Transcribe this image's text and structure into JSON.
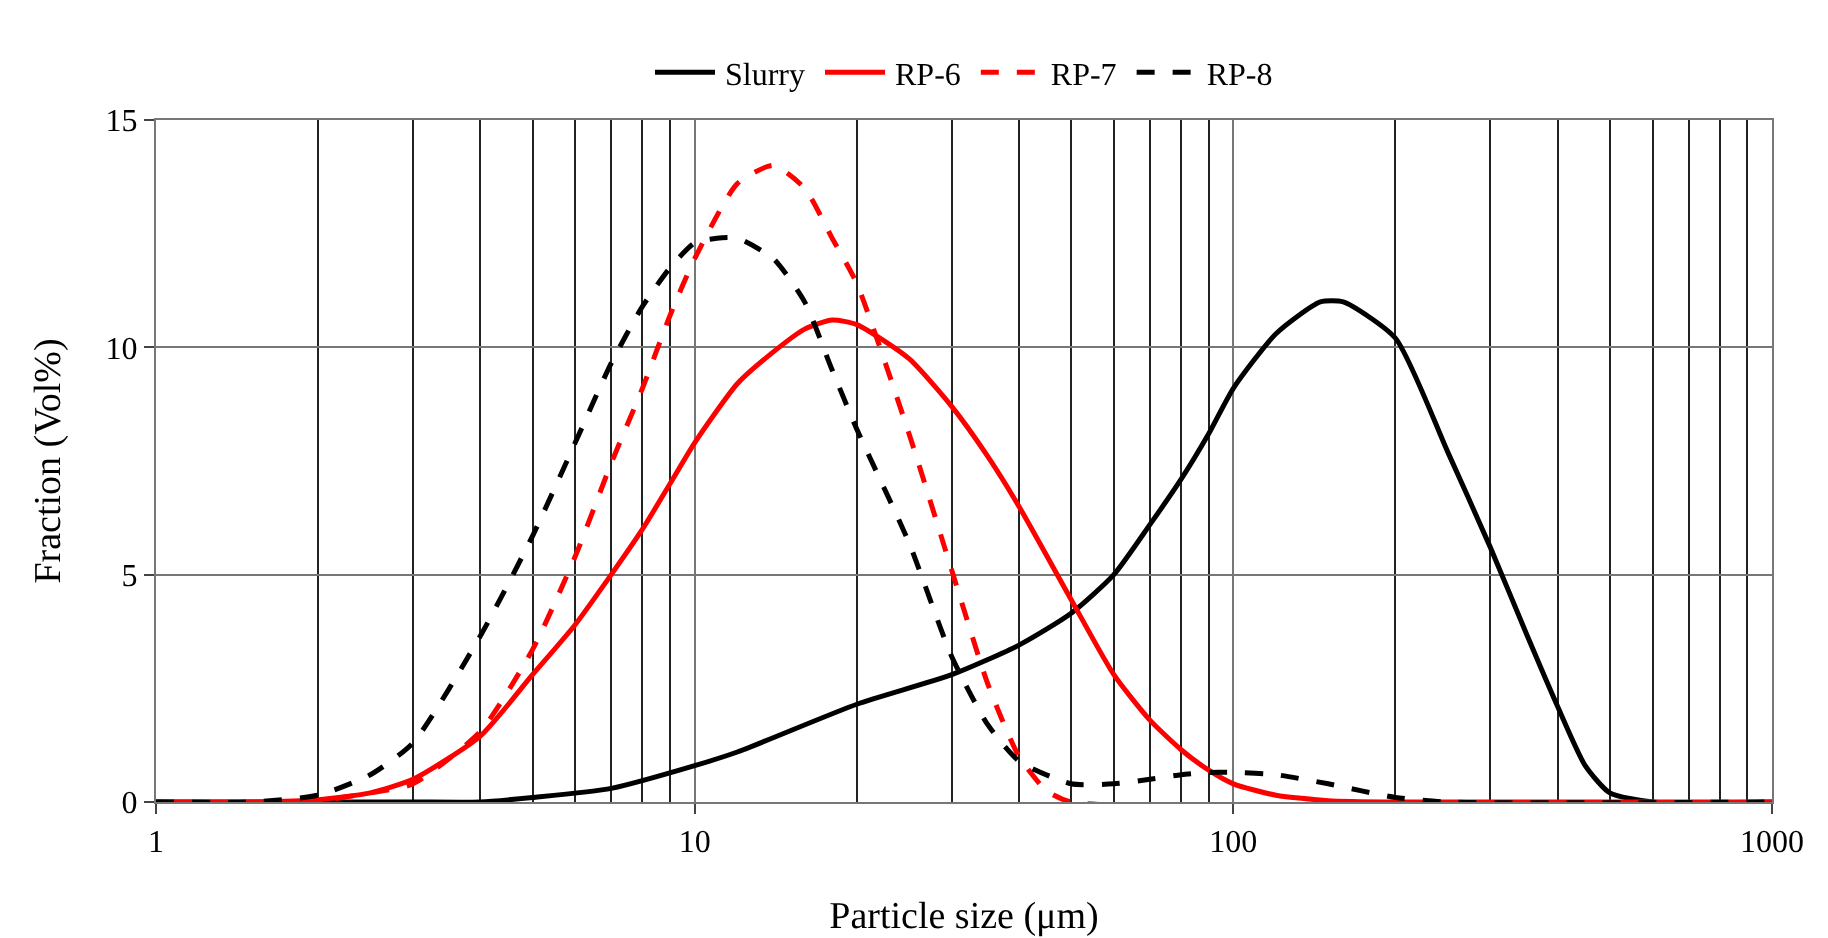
{
  "chart_data": {
    "type": "line",
    "xlabel": "Particle size (μm)",
    "ylabel": "Fraction (Vol%)",
    "log": "x",
    "xlim": [
      1,
      1000
    ],
    "xticks": [
      1,
      10,
      100,
      1000
    ],
    "ylim": [
      0,
      15
    ],
    "yticks": [
      0,
      5,
      10,
      15
    ],
    "grid": true,
    "legend": "top",
    "marker": "none",
    "series": [
      {
        "name": "Slurry",
        "color": "#000000",
        "line_style": "solid",
        "x": [
          1,
          2,
          3,
          4,
          5,
          7,
          10,
          12,
          20,
          30,
          40,
          50,
          60,
          70,
          80,
          90,
          100,
          120,
          145,
          160,
          200,
          250,
          300,
          350,
          400,
          450,
          500,
          600,
          1000
        ],
        "values": [
          0,
          0,
          0,
          0,
          0.1,
          0.3,
          0.8,
          1.1,
          2.15,
          2.8,
          3.45,
          4.15,
          5.0,
          6.1,
          7.1,
          8.1,
          9.1,
          10.3,
          11.0,
          11.0,
          10.2,
          7.7,
          5.6,
          3.7,
          2.1,
          0.8,
          0.2,
          0,
          0
        ]
      },
      {
        "name": "RP-6",
        "color": "#ff0000",
        "line_style": "solid",
        "x": [
          1,
          1.5,
          2,
          2.5,
          3,
          4,
          5,
          6,
          7,
          8,
          9,
          10,
          12,
          14,
          16,
          18,
          20,
          25,
          30,
          35,
          40,
          50,
          60,
          70,
          80,
          90,
          100,
          120,
          150,
          200,
          1000
        ],
        "values": [
          0,
          0,
          0.05,
          0.2,
          0.5,
          1.45,
          2.8,
          3.9,
          5.0,
          6.0,
          7.0,
          7.9,
          9.2,
          9.9,
          10.4,
          10.6,
          10.5,
          9.75,
          8.7,
          7.6,
          6.5,
          4.45,
          2.8,
          1.8,
          1.15,
          0.7,
          0.4,
          0.15,
          0.03,
          0,
          0
        ]
      },
      {
        "name": "RP-7",
        "color": "#ff0000",
        "line_style": "dashed",
        "x": [
          1,
          1.5,
          2,
          2.5,
          3,
          4,
          5,
          6,
          7,
          8,
          9,
          10,
          12,
          14,
          16,
          18,
          20,
          25,
          30,
          35,
          40,
          45,
          50,
          1000
        ],
        "values": [
          0,
          0,
          0.03,
          0.2,
          0.4,
          1.55,
          3.35,
          5.4,
          7.45,
          9.1,
          10.7,
          11.95,
          13.6,
          14.0,
          13.5,
          12.4,
          11.4,
          8.1,
          5.1,
          2.6,
          1.0,
          0.25,
          0,
          0
        ]
      },
      {
        "name": "RP-8",
        "color": "#000000",
        "line_style": "dashed",
        "x": [
          1,
          1.5,
          2,
          2.5,
          3,
          4,
          5,
          6,
          7,
          8,
          9,
          10,
          11,
          12,
          14,
          16,
          18,
          20,
          25,
          30,
          35,
          40,
          50,
          60,
          70,
          80,
          90,
          100,
          120,
          150,
          200,
          250,
          1000
        ],
        "values": [
          0,
          0,
          0.15,
          0.6,
          1.3,
          3.65,
          5.85,
          7.9,
          9.65,
          10.9,
          11.75,
          12.3,
          12.4,
          12.4,
          11.95,
          11.0,
          9.5,
          8.2,
          5.7,
          3.2,
          1.7,
          0.9,
          0.4,
          0.4,
          0.5,
          0.6,
          0.65,
          0.65,
          0.6,
          0.4,
          0.1,
          0,
          0
        ]
      }
    ]
  }
}
